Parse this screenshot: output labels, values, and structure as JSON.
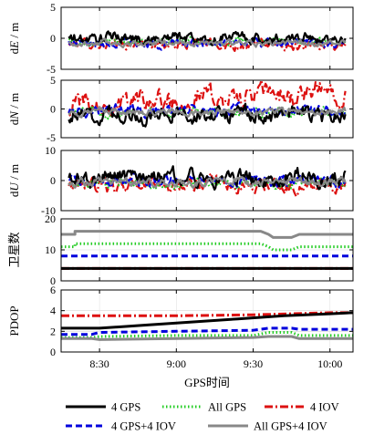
{
  "chart_data": [
    {
      "type": "line",
      "ylabel": "dE / m",
      "ylabel_parts": [
        "d",
        "E",
        " / m"
      ],
      "ylim": [
        -5,
        5
      ],
      "yticks": [
        -5,
        0,
        5
      ],
      "xlim": [
        8.25,
        10.15
      ],
      "series": [
        {
          "name": "4 GPS",
          "mean": 0,
          "amp": 1.0
        },
        {
          "name": "All GPS",
          "mean": -0.5,
          "amp": 0.6
        },
        {
          "name": "4 IOV",
          "mean": -1.0,
          "amp": 0.8
        },
        {
          "name": "4 GPS+4 IOV",
          "mean": -0.8,
          "amp": 0.7
        },
        {
          "name": "All GPS+4 IOV",
          "mean": -0.8,
          "amp": 0.5
        }
      ]
    },
    {
      "type": "line",
      "ylabel": "dN / m",
      "ylabel_parts": [
        "d",
        "N",
        " / m"
      ],
      "ylim": [
        -5,
        5
      ],
      "yticks": [
        -5,
        0,
        5
      ],
      "xlim": [
        8.25,
        10.15
      ],
      "series": [
        {
          "name": "4 GPS",
          "mean": -1.0,
          "amp": 1.5
        },
        {
          "name": "All GPS",
          "mean": -0.5,
          "amp": 0.8
        },
        {
          "name": "4 IOV",
          "mean": 1.5,
          "amp": 2.0
        },
        {
          "name": "4 GPS+4 IOV",
          "mean": -0.3,
          "amp": 1.0
        },
        {
          "name": "All GPS+4 IOV",
          "mean": -0.5,
          "amp": 0.6
        }
      ]
    },
    {
      "type": "line",
      "ylabel": "dU / m",
      "ylabel_parts": [
        "d",
        "U",
        " / m"
      ],
      "ylim": [
        -10,
        10
      ],
      "yticks": [
        -10,
        0,
        10
      ],
      "xlim": [
        8.25,
        10.15
      ],
      "series": [
        {
          "name": "4 GPS",
          "mean": 1.0,
          "amp": 3.0
        },
        {
          "name": "All GPS",
          "mean": -1.0,
          "amp": 1.5
        },
        {
          "name": "4 IOV",
          "mean": -1.5,
          "amp": 2.5
        },
        {
          "name": "4 GPS+4 IOV",
          "mean": 0.0,
          "amp": 2.0
        },
        {
          "name": "All GPS+4 IOV",
          "mean": -0.5,
          "amp": 1.5
        }
      ]
    },
    {
      "type": "line",
      "ylabel": "卫星数",
      "ylim": [
        0,
        20
      ],
      "yticks": [
        0,
        10,
        20
      ],
      "xlim": [
        8.25,
        10.15
      ],
      "series": [
        {
          "name": "4 GPS",
          "x": [
            8.25,
            10.15
          ],
          "y": [
            4,
            4
          ]
        },
        {
          "name": "All GPS",
          "x": [
            8.25,
            8.34,
            8.34,
            9.55,
            9.6,
            9.63,
            9.75,
            9.8,
            10.15
          ],
          "y": [
            11,
            11,
            12,
            12,
            11,
            10,
            10,
            11,
            11
          ]
        },
        {
          "name": "4 IOV",
          "x": [
            8.25,
            10.15
          ],
          "y": [
            4,
            4
          ]
        },
        {
          "name": "4 GPS+4 IOV",
          "x": [
            8.25,
            10.15
          ],
          "y": [
            8,
            8
          ]
        },
        {
          "name": "All GPS+4 IOV",
          "x": [
            8.25,
            8.34,
            8.34,
            9.55,
            9.6,
            9.63,
            9.75,
            9.8,
            10.15
          ],
          "y": [
            15,
            15,
            16,
            16,
            15,
            14,
            14,
            15,
            15
          ]
        }
      ]
    },
    {
      "type": "line",
      "ylabel": "PDOP",
      "ylim": [
        0,
        6
      ],
      "yticks": [
        0,
        2,
        4,
        6
      ],
      "xlim": [
        8.25,
        10.15
      ],
      "series": [
        {
          "name": "4 GPS",
          "x": [
            8.25,
            8.5,
            8.8,
            9.1,
            9.4,
            9.7,
            10.0,
            10.15
          ],
          "y": [
            2.3,
            2.3,
            2.6,
            2.9,
            3.2,
            3.5,
            3.7,
            3.8
          ]
        },
        {
          "name": "All GPS",
          "x": [
            8.25,
            8.45,
            8.5,
            9.0,
            9.5,
            9.6,
            9.75,
            9.8,
            10.15
          ],
          "y": [
            1.4,
            1.4,
            1.5,
            1.6,
            1.6,
            1.9,
            1.9,
            1.6,
            1.6
          ]
        },
        {
          "name": "4 IOV",
          "x": [
            8.25,
            8.5,
            9.0,
            9.5,
            9.75,
            10.0,
            10.15
          ],
          "y": [
            3.5,
            3.5,
            3.5,
            3.6,
            3.7,
            3.8,
            3.8
          ]
        },
        {
          "name": "4 GPS+4 IOV",
          "x": [
            8.25,
            8.45,
            8.5,
            9.0,
            9.5,
            9.6,
            9.75,
            9.8,
            10.15
          ],
          "y": [
            1.7,
            1.7,
            1.9,
            2.0,
            2.1,
            2.3,
            2.3,
            2.2,
            2.2
          ]
        },
        {
          "name": "All GPS+4 IOV",
          "x": [
            8.25,
            8.45,
            8.5,
            9.0,
            9.5,
            9.6,
            9.75,
            9.8,
            10.15
          ],
          "y": [
            1.3,
            1.3,
            1.2,
            1.3,
            1.4,
            1.5,
            1.5,
            1.3,
            1.3
          ]
        }
      ]
    }
  ],
  "x_axis": {
    "label": "GPS时间",
    "ticks": [
      8.5,
      9.0,
      9.5,
      10.0
    ],
    "tick_labels": [
      "8:30",
      "9:00",
      "9:30",
      "10:00"
    ]
  },
  "legend": {
    "placement": "bottom",
    "items": [
      {
        "label": "4 GPS",
        "series": "4 GPS"
      },
      {
        "label": "All GPS",
        "series": "All GPS"
      },
      {
        "label": "4 IOV",
        "series": "4 IOV"
      },
      {
        "label": "4 GPS+4 IOV",
        "series": "4 GPS+4 IOV"
      },
      {
        "label": "All GPS+4 IOV",
        "series": "All GPS+4 IOV"
      }
    ]
  },
  "styles": {
    "4 GPS": {
      "color": "#000000",
      "dash": ""
    },
    "All GPS": {
      "color": "#22cc22",
      "dash": "1.5,2.5"
    },
    "4 IOV": {
      "color": "#dd1111",
      "dash": "9,3,2,3"
    },
    "4 GPS+4 IOV": {
      "color": "#0000dd",
      "dash": "7,4"
    },
    "All GPS+4 IOV": {
      "color": "#888888",
      "dash": ""
    }
  },
  "grid": true
}
